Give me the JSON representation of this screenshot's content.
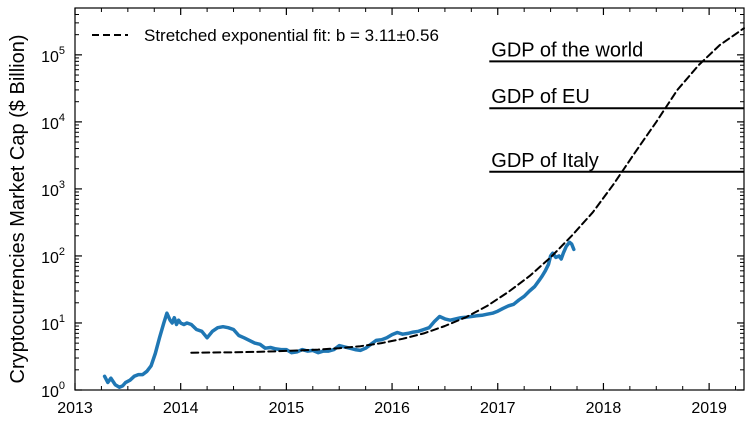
{
  "chart_data": {
    "type": "line",
    "title": "",
    "xlabel": "",
    "ylabel": "Cryptocurrencies Market Cap ($ Billion)",
    "y_scale": "log",
    "xlim": [
      2013.0,
      2019.33
    ],
    "ylim": [
      1,
      500000
    ],
    "grid": false,
    "legend_position": "top-left",
    "x_ticks": [
      {
        "value": 2013,
        "label": "2013"
      },
      {
        "value": 2014,
        "label": "2014"
      },
      {
        "value": 2015,
        "label": "2015"
      },
      {
        "value": 2016,
        "label": "2016"
      },
      {
        "value": 2017,
        "label": "2017"
      },
      {
        "value": 2018,
        "label": "2018"
      },
      {
        "value": 2019,
        "label": "2019"
      }
    ],
    "y_ticks": [
      {
        "value": 1,
        "base": "10",
        "exp": "0"
      },
      {
        "value": 10,
        "base": "10",
        "exp": "1"
      },
      {
        "value": 100,
        "base": "10",
        "exp": "2"
      },
      {
        "value": 1000,
        "base": "10",
        "exp": "3"
      },
      {
        "value": 10000,
        "base": "10",
        "exp": "4"
      },
      {
        "value": 100000,
        "base": "10",
        "exp": "5"
      }
    ],
    "series": [
      {
        "name": "",
        "style": "solid",
        "color": "#1f77b4",
        "x": [
          2013.28,
          2013.31,
          2013.34,
          2013.38,
          2013.42,
          2013.45,
          2013.48,
          2013.52,
          2013.56,
          2013.6,
          2013.64,
          2013.68,
          2013.72,
          2013.76,
          2013.8,
          2013.84,
          2013.87,
          2013.9,
          2013.92,
          2013.94,
          2013.96,
          2013.98,
          2014.0,
          2014.03,
          2014.06,
          2014.1,
          2014.15,
          2014.2,
          2014.25,
          2014.3,
          2014.35,
          2014.4,
          2014.45,
          2014.5,
          2014.55,
          2014.6,
          2014.65,
          2014.7,
          2014.75,
          2014.8,
          2014.85,
          2014.9,
          2014.95,
          2015.0,
          2015.05,
          2015.1,
          2015.15,
          2015.2,
          2015.25,
          2015.3,
          2015.35,
          2015.4,
          2015.45,
          2015.5,
          2015.55,
          2015.6,
          2015.65,
          2015.7,
          2015.75,
          2015.8,
          2015.85,
          2015.9,
          2015.95,
          2016.0,
          2016.05,
          2016.1,
          2016.15,
          2016.2,
          2016.25,
          2016.3,
          2016.35,
          2016.4,
          2016.45,
          2016.5,
          2016.55,
          2016.6,
          2016.65,
          2016.7,
          2016.75,
          2016.8,
          2016.85,
          2016.9,
          2016.95,
          2017.0,
          2017.05,
          2017.1,
          2017.15,
          2017.2,
          2017.25,
          2017.3,
          2017.35,
          2017.4,
          2017.42,
          2017.45,
          2017.48,
          2017.5,
          2017.52,
          2017.55,
          2017.58,
          2017.6,
          2017.62,
          2017.65,
          2017.68,
          2017.7,
          2017.72
        ],
        "y": [
          1.6,
          1.3,
          1.5,
          1.2,
          1.1,
          1.15,
          1.3,
          1.4,
          1.6,
          1.7,
          1.7,
          1.9,
          2.3,
          3.5,
          6,
          10,
          14,
          11,
          10,
          12,
          9.5,
          11,
          10,
          9.5,
          10,
          9.5,
          8,
          7.5,
          6,
          7.5,
          8.5,
          8.8,
          8.5,
          8,
          6.5,
          6,
          5.5,
          5,
          4.8,
          4.2,
          4.3,
          4.1,
          4.0,
          4.0,
          3.6,
          3.7,
          4.0,
          3.8,
          3.9,
          3.6,
          3.8,
          3.8,
          4.0,
          4.6,
          4.4,
          4.2,
          4.0,
          3.9,
          4.2,
          4.8,
          5.5,
          5.6,
          6.0,
          6.7,
          7.2,
          6.8,
          7.0,
          7.3,
          7.5,
          8.0,
          8.5,
          10.5,
          12.5,
          11.5,
          11.0,
          11.5,
          12.0,
          12.2,
          12.5,
          12.8,
          13.0,
          13.5,
          14.0,
          15.0,
          16.5,
          18.0,
          19.0,
          22.0,
          25.0,
          30.0,
          35.0,
          45.0,
          50.0,
          60.0,
          75.0,
          100.0,
          110.0,
          95.0,
          100.0,
          90.0,
          110.0,
          140.0,
          160.0,
          150.0,
          125.0
        ]
      },
      {
        "name": "Stretched exponential fit: b = 3.11±0.56",
        "style": "dashed",
        "color": "#000000",
        "x": [
          2014.1,
          2014.3,
          2014.5,
          2014.7,
          2014.9,
          2015.1,
          2015.3,
          2015.5,
          2015.7,
          2015.9,
          2016.1,
          2016.3,
          2016.5,
          2016.7,
          2016.9,
          2017.1,
          2017.3,
          2017.5,
          2017.7,
          2017.9,
          2018.1,
          2018.3,
          2018.5,
          2018.7,
          2018.9,
          2019.1,
          2019.33
        ],
        "y": [
          3.6,
          3.62,
          3.65,
          3.7,
          3.78,
          3.88,
          4.0,
          4.2,
          4.5,
          5.0,
          5.8,
          7.0,
          9.0,
          12.2,
          18.0,
          29.0,
          50.0,
          95.0,
          200.0,
          450.0,
          1200.0,
          3500.0,
          10000.0,
          30000.0,
          70000.0,
          140000.0,
          250000.0
        ]
      }
    ],
    "reference_lines": [
      {
        "label": "GDP of the world",
        "value": 80000,
        "x_start": 2016.92
      },
      {
        "label": "GDP of EU",
        "value": 16000,
        "x_start": 2016.92
      },
      {
        "label": "GDP of Italy",
        "value": 1800,
        "x_start": 2016.92
      }
    ]
  }
}
